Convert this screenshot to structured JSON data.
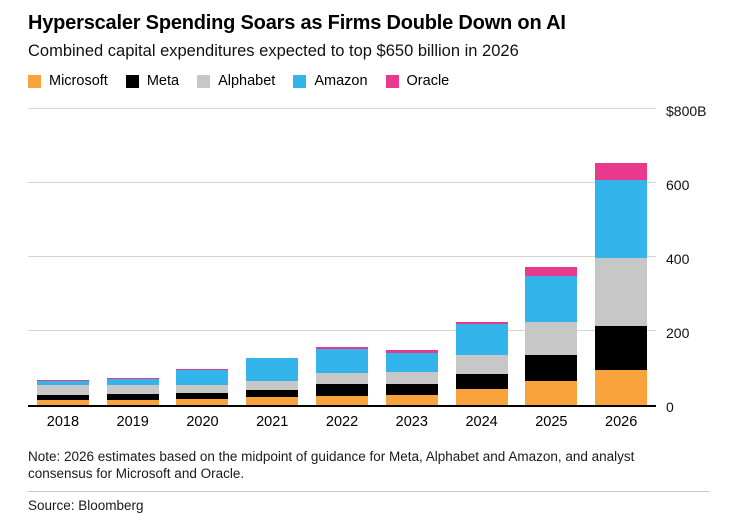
{
  "header": {
    "title": "Hyperscaler Spending Soars as Firms Double Down on AI",
    "subtitle": "Combined capital expenditures expected to top $650 billion in 2026"
  },
  "chart_data": {
    "type": "bar",
    "stacked": true,
    "title": "Hyperscaler Spending Soars as Firms Double Down on AI",
    "subtitle": "Combined capital expenditures expected to top $650 billion in 2026",
    "categories": [
      "2018",
      "2019",
      "2020",
      "2021",
      "2022",
      "2023",
      "2024",
      "2025",
      "2026"
    ],
    "series": [
      {
        "name": "Microsoft",
        "color": "#F8A33B",
        "values": [
          14,
          14,
          17,
          21,
          24,
          28,
          44,
          64,
          95
        ]
      },
      {
        "name": "Meta",
        "color": "#000000",
        "values": [
          14,
          15,
          16,
          19,
          32,
          28,
          39,
          70,
          118
        ]
      },
      {
        "name": "Alphabet",
        "color": "#C7C7C7",
        "values": [
          25,
          24,
          22,
          25,
          31,
          32,
          52,
          91,
          185
        ]
      },
      {
        "name": "Amazon",
        "color": "#33B5EC",
        "values": [
          13,
          17,
          40,
          61,
          64,
          53,
          83,
          125,
          210
        ]
      },
      {
        "name": "Oracle",
        "color": "#E8398D",
        "values": [
          2,
          2,
          2,
          2,
          5,
          9,
          7,
          24,
          45
        ]
      }
    ],
    "ylim": [
      0,
      800
    ],
    "yticks": [
      0,
      200,
      400,
      600
    ],
    "ytop_label": "$800B",
    "gridlines": [
      200,
      400,
      600,
      800
    ],
    "grid": true,
    "legend_position": "top-left"
  },
  "footer": {
    "note": "Note: 2026 estimates based on the midpoint of guidance for Meta, Alphabet and Amazon, and analyst consensus for Microsoft and Oracle.",
    "source": "Source: Bloomberg"
  }
}
